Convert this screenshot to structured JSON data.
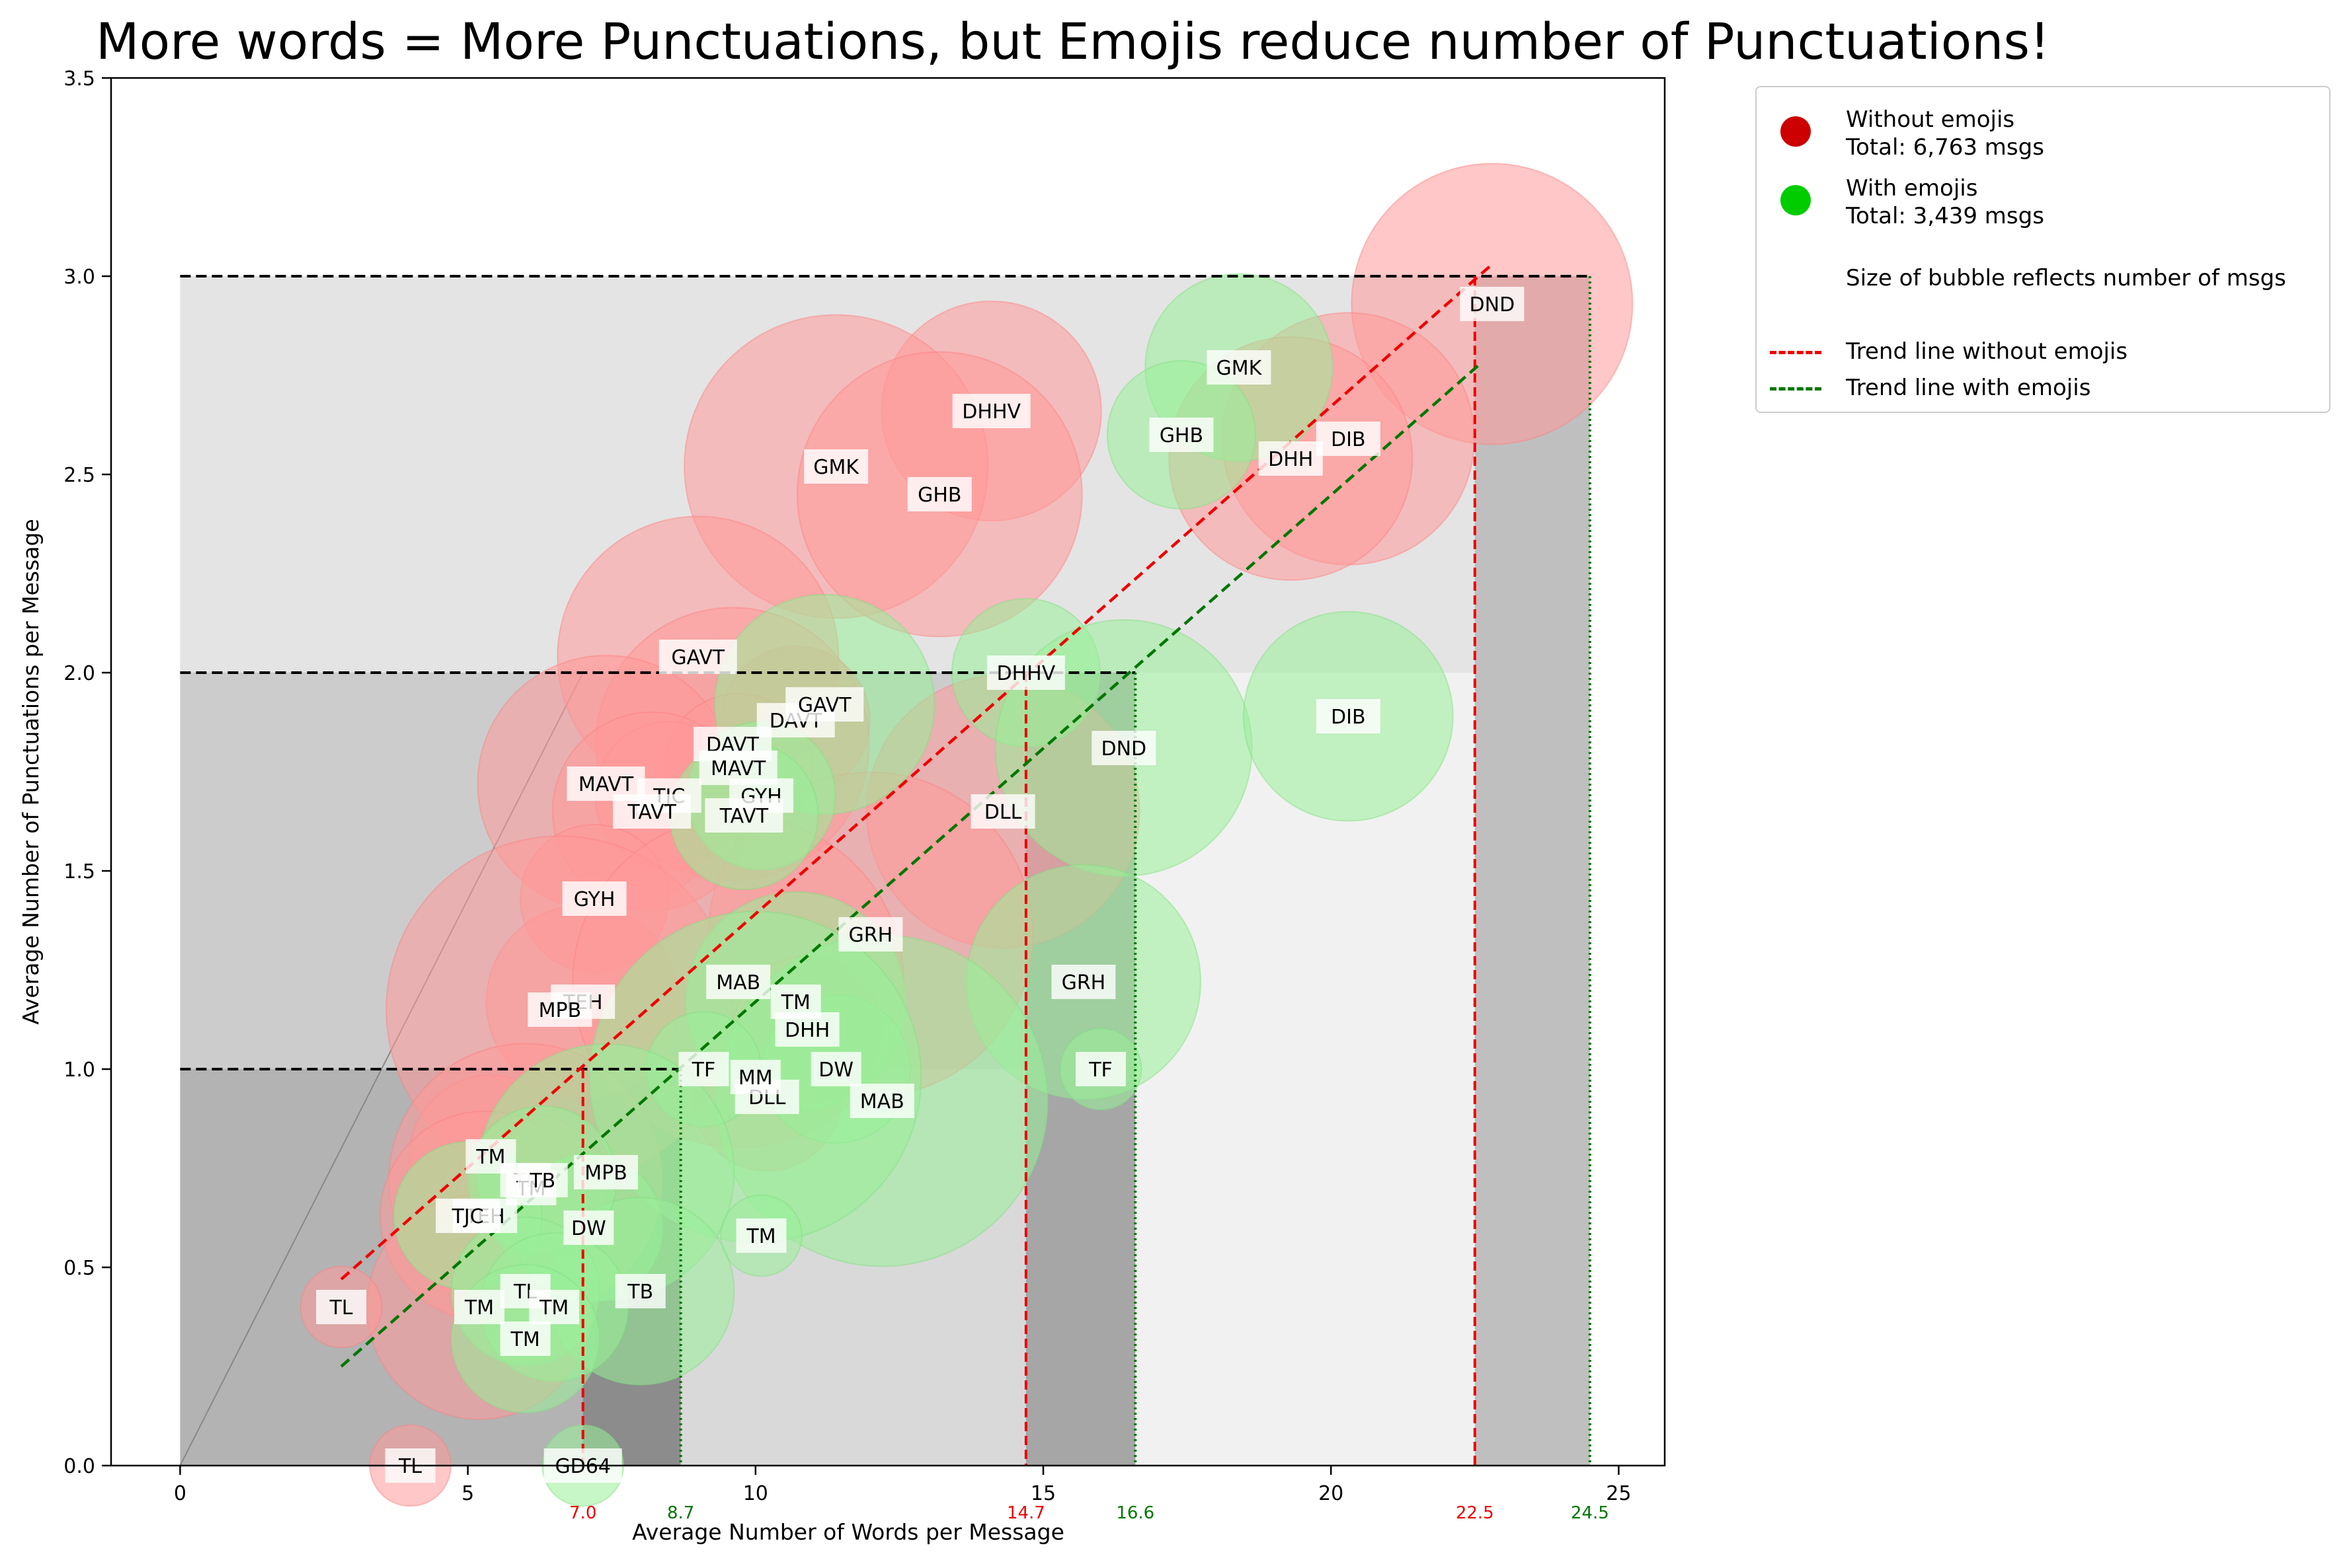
{
  "chart_data": {
    "type": "scatter",
    "title": "More words = More Punctuations, but Emojis reduce number of Punctuations!",
    "xlabel": "Average Number of Words per Message",
    "ylabel": "Average Number of Punctuations per Message",
    "xlim": [
      -1.2,
      25.8
    ],
    "ylim": [
      0,
      3.5
    ],
    "xticks": [
      {
        "value": 0,
        "label": "0"
      },
      {
        "value": 5,
        "label": "5"
      },
      {
        "value": 10,
        "label": "10"
      },
      {
        "value": 15,
        "label": "15"
      },
      {
        "value": 20,
        "label": "20"
      },
      {
        "value": 25,
        "label": "25"
      }
    ],
    "yticks": [
      {
        "value": 0,
        "label": "0.0"
      },
      {
        "value": 0.5,
        "label": "0.5"
      },
      {
        "value": 1.0,
        "label": "1.0"
      },
      {
        "value": 1.5,
        "label": "1.5"
      },
      {
        "value": 2.0,
        "label": "2.0"
      },
      {
        "value": 2.5,
        "label": "2.5"
      },
      {
        "value": 3.0,
        "label": "3.0"
      },
      {
        "value": 3.5,
        "label": "3.5"
      }
    ],
    "series": [
      {
        "name": "Without emojis",
        "color": "#ff9999",
        "points": [
          {
            "x": 22.8,
            "y": 2.93,
            "size": 3.6,
            "label": "DND"
          },
          {
            "x": 14.1,
            "y": 2.66,
            "size": 2.2,
            "label": "DHHV"
          },
          {
            "x": 11.4,
            "y": 2.52,
            "size": 4.2,
            "label": "GMK"
          },
          {
            "x": 13.2,
            "y": 2.45,
            "size": 3.7,
            "label": "GHB"
          },
          {
            "x": 20.3,
            "y": 2.59,
            "size": 2.9,
            "label": "DIB"
          },
          {
            "x": 19.3,
            "y": 2.54,
            "size": 2.7,
            "label": "DHH"
          },
          {
            "x": 9.0,
            "y": 2.04,
            "size": 3.6,
            "label": "GAVT"
          },
          {
            "x": 10.7,
            "y": 1.88,
            "size": 1.0,
            "label": "DAVT"
          },
          {
            "x": 9.6,
            "y": 1.82,
            "size": 3.4,
            "label": "DAVT"
          },
          {
            "x": 7.4,
            "y": 1.72,
            "size": 3.0,
            "label": "MAVT"
          },
          {
            "x": 9.7,
            "y": 1.76,
            "size": 1.0,
            "label": "MAVT"
          },
          {
            "x": 8.5,
            "y": 1.69,
            "size": 1.0,
            "label": "TJC"
          },
          {
            "x": 8.2,
            "y": 1.65,
            "size": 1.8,
            "label": "TAVT"
          },
          {
            "x": 14.3,
            "y": 1.65,
            "size": 3.4,
            "label": "DLL"
          },
          {
            "x": 7.2,
            "y": 1.43,
            "size": 1.0,
            "label": "GYH"
          },
          {
            "x": 12.0,
            "y": 1.34,
            "size": 4.8,
            "label": "GRH"
          },
          {
            "x": 7.0,
            "y": 1.17,
            "size": 1.7,
            "label": "TEH"
          },
          {
            "x": 6.6,
            "y": 1.15,
            "size": 5.5,
            "label": "MPB"
          },
          {
            "x": 9.7,
            "y": 1.22,
            "size": 5.0,
            "label": "MAB"
          },
          {
            "x": 10.9,
            "y": 1.1,
            "size": 1.0,
            "label": "DHH"
          },
          {
            "x": 10.2,
            "y": 0.93,
            "size": 1.0,
            "label": "DLL"
          },
          {
            "x": 5.4,
            "y": 0.78,
            "size": 1.2,
            "label": "TM"
          },
          {
            "x": 6.0,
            "y": 0.72,
            "size": 3.4,
            "label": "TL"
          },
          {
            "x": 6.1,
            "y": 0.7,
            "size": 1.0,
            "label": "TM"
          },
          {
            "x": 5.3,
            "y": 0.63,
            "size": 2.0,
            "label": "TEH"
          },
          {
            "x": 5.2,
            "y": 0.4,
            "size": 2.3,
            "label": "TM"
          },
          {
            "x": 2.8,
            "y": 0.4,
            "size": 0.3,
            "label": "TL"
          },
          {
            "x": 4.0,
            "y": 0.0,
            "size": 0.3,
            "label": "TL"
          }
        ]
      },
      {
        "name": "With emojis",
        "color": "#99ee99",
        "points": [
          {
            "x": 18.4,
            "y": 2.77,
            "size": 1.6,
            "label": "GMK"
          },
          {
            "x": 17.4,
            "y": 2.6,
            "size": 1.0,
            "label": "GHB"
          },
          {
            "x": 11.2,
            "y": 1.92,
            "size": 2.2,
            "label": "GAVT"
          },
          {
            "x": 14.7,
            "y": 2.0,
            "size": 1.0,
            "label": "DHHV"
          },
          {
            "x": 16.4,
            "y": 1.81,
            "size": 3.0,
            "label": "DND"
          },
          {
            "x": 20.3,
            "y": 1.89,
            "size": 2.0,
            "label": "DIB"
          },
          {
            "x": 10.1,
            "y": 1.69,
            "size": 1.0,
            "label": "GYH"
          },
          {
            "x": 9.8,
            "y": 1.64,
            "size": 1.0,
            "label": "TAVT"
          },
          {
            "x": 15.7,
            "y": 1.22,
            "size": 2.5,
            "label": "GRH"
          },
          {
            "x": 16.0,
            "y": 1.0,
            "size": 0.3,
            "label": "TF"
          },
          {
            "x": 10.7,
            "y": 1.17,
            "size": 2.2,
            "label": "TM"
          },
          {
            "x": 12.2,
            "y": 0.92,
            "size": 5.0,
            "label": "MAB"
          },
          {
            "x": 11.4,
            "y": 1.0,
            "size": 1.0,
            "label": "DW"
          },
          {
            "x": 10.0,
            "y": 0.98,
            "size": 5.0,
            "label": "MM"
          },
          {
            "x": 9.1,
            "y": 1.0,
            "size": 0.6,
            "label": "TF"
          },
          {
            "x": 7.4,
            "y": 0.74,
            "size": 3.0,
            "label": "MPB"
          },
          {
            "x": 7.1,
            "y": 0.6,
            "size": 1.0,
            "label": "DW"
          },
          {
            "x": 10.1,
            "y": 0.58,
            "size": 0.3,
            "label": "TM"
          },
          {
            "x": 8.0,
            "y": 0.44,
            "size": 1.6,
            "label": "TB"
          },
          {
            "x": 6.3,
            "y": 0.72,
            "size": 1.0,
            "label": "TB"
          },
          {
            "x": 5.0,
            "y": 0.63,
            "size": 1.0,
            "label": "TJC"
          },
          {
            "x": 6.0,
            "y": 0.44,
            "size": 1.0,
            "label": "TL"
          },
          {
            "x": 6.5,
            "y": 0.4,
            "size": 1.0,
            "label": "TM"
          },
          {
            "x": 6.0,
            "y": 0.32,
            "size": 1.0,
            "label": "TM"
          },
          {
            "x": 7.0,
            "y": 0.0,
            "size": 0.3,
            "label": "GD64"
          }
        ]
      }
    ],
    "trend_lines": [
      {
        "name": "Trend line without emojis",
        "color": "#ee0000",
        "x": [
          2.8,
          22.8
        ],
        "y": [
          0.47,
          3.03
        ]
      },
      {
        "name": "Trend line with emojis",
        "color": "#007700",
        "x": [
          2.8,
          22.6
        ],
        "y": [
          0.25,
          2.78
        ]
      }
    ],
    "threshold_markers": [
      {
        "value": 7.0,
        "label": "7.0",
        "color": "#ee0000",
        "style": "dashed",
        "ytop": 1.0
      },
      {
        "value": 8.7,
        "label": "8.7",
        "color": "#007700",
        "style": "dotted",
        "ytop": 1.0
      },
      {
        "value": 14.7,
        "label": "14.7",
        "color": "#ee0000",
        "style": "dashed",
        "ytop": 2.0
      },
      {
        "value": 16.6,
        "label": "16.6",
        "color": "#007700",
        "style": "dotted",
        "ytop": 2.0
      },
      {
        "value": 22.5,
        "label": "22.5",
        "color": "#ee0000",
        "style": "dashed",
        "ytop": 3.0
      },
      {
        "value": 24.5,
        "label": "24.5",
        "color": "#007700",
        "style": "dotted",
        "ytop": 3.0
      }
    ],
    "horizontal_levels": [
      1.0,
      2.0,
      3.0
    ],
    "grid": false,
    "legend_position": "outside-right-top"
  },
  "legend": {
    "without_title": "Without emojis",
    "without_total": "Total: 6,763 msgs",
    "with_title": "With emojis",
    "with_total": "Total: 3,439 msgs",
    "size_note": "Size of bubble reflects number of msgs",
    "trend_without": "Trend line without emojis",
    "trend_with": "Trend line with emojis",
    "color_without": "#cc0000",
    "color_with": "#00cc00"
  }
}
